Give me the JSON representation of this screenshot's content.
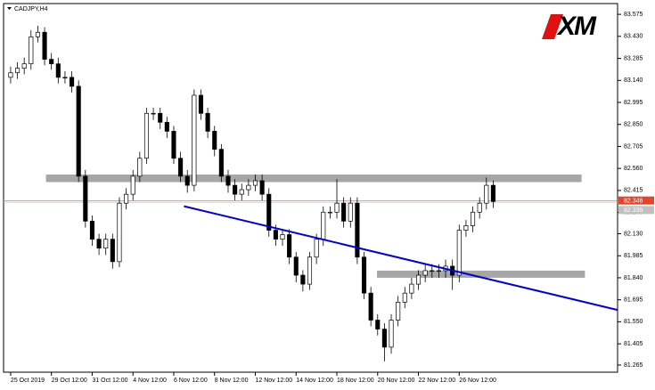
{
  "chart_data": {
    "type": "candlestick",
    "title": "CADJPY,H4",
    "logo": "XM",
    "open": [
      83.16,
      83.19,
      83.22,
      83.249,
      83.427,
      83.457,
      83.279,
      83.249,
      83.16,
      83.16,
      83.101,
      82.509,
      82.213,
      82.094,
      82.035,
      82.094,
      81.946,
      82.331,
      82.39,
      82.509,
      82.627,
      82.923,
      82.923,
      82.864,
      82.805,
      82.627,
      82.509,
      82.449,
      83.042,
      82.923,
      82.805,
      82.686,
      82.509,
      82.449,
      82.39,
      82.42,
      82.449,
      82.479,
      82.39,
      82.153,
      82.094,
      82.124,
      81.976,
      81.857,
      81.798,
      81.976,
      82.094,
      82.272,
      82.272,
      82.331,
      82.213,
      82.331,
      81.976,
      81.739,
      81.561,
      81.502,
      81.383,
      81.561,
      81.679,
      81.739,
      81.798,
      81.857,
      81.887,
      81.887,
      81.887,
      81.916,
      81.857,
      82.153,
      82.183,
      82.272,
      82.331,
      82.449
    ],
    "high": [
      83.23,
      83.26,
      83.29,
      83.47,
      83.5,
      83.49,
      83.32,
      83.29,
      83.2,
      83.2,
      83.14,
      82.55,
      82.25,
      82.13,
      82.13,
      82.13,
      82.37,
      82.43,
      82.55,
      82.67,
      82.96,
      82.96,
      82.96,
      82.9,
      82.84,
      82.67,
      82.55,
      83.08,
      83.08,
      82.96,
      82.84,
      82.72,
      82.55,
      82.49,
      82.46,
      82.49,
      82.52,
      82.52,
      82.43,
      82.19,
      82.16,
      82.16,
      82.01,
      81.89,
      82.01,
      82.13,
      82.31,
      82.31,
      82.49,
      82.37,
      82.37,
      82.37,
      82.01,
      81.78,
      81.6,
      81.54,
      81.6,
      81.72,
      81.78,
      81.84,
      81.89,
      81.93,
      81.93,
      81.93,
      81.96,
      81.96,
      82.19,
      82.22,
      82.31,
      82.37,
      82.5,
      82.48
    ],
    "low": [
      83.12,
      83.15,
      83.18,
      83.21,
      83.39,
      83.24,
      83.21,
      83.12,
      83.12,
      83.06,
      82.47,
      82.17,
      82.05,
      81.99,
      81.99,
      81.9,
      81.91,
      82.29,
      82.35,
      82.47,
      82.59,
      82.88,
      82.82,
      82.76,
      82.59,
      82.47,
      82.4,
      82.41,
      82.88,
      82.76,
      82.64,
      82.47,
      82.4,
      82.35,
      82.35,
      82.38,
      82.41,
      82.35,
      82.11,
      82.05,
      82.05,
      81.93,
      81.81,
      81.75,
      81.76,
      81.93,
      82.05,
      82.23,
      82.23,
      82.17,
      82.17,
      81.93,
      81.7,
      81.52,
      81.46,
      81.29,
      81.34,
      81.52,
      81.64,
      81.7,
      81.76,
      81.81,
      81.84,
      81.84,
      81.84,
      81.76,
      81.81,
      82.11,
      82.14,
      82.23,
      82.29,
      82.3
    ],
    "close": [
      83.19,
      83.22,
      83.249,
      83.427,
      83.457,
      83.279,
      83.249,
      83.16,
      83.16,
      83.101,
      82.509,
      82.213,
      82.094,
      82.035,
      82.094,
      81.946,
      82.331,
      82.39,
      82.509,
      82.627,
      82.923,
      82.923,
      82.864,
      82.805,
      82.627,
      82.509,
      82.449,
      83.042,
      82.923,
      82.805,
      82.686,
      82.509,
      82.449,
      82.39,
      82.42,
      82.449,
      82.479,
      82.39,
      82.153,
      82.094,
      82.124,
      81.976,
      81.857,
      81.798,
      81.976,
      82.094,
      82.272,
      82.272,
      82.331,
      82.213,
      82.331,
      81.976,
      81.739,
      81.561,
      81.502,
      81.383,
      81.561,
      81.679,
      81.739,
      81.798,
      81.857,
      81.887,
      81.887,
      81.887,
      81.916,
      81.857,
      82.153,
      82.183,
      82.272,
      82.331,
      82.449,
      82.342
    ],
    "xlim": [
      -1.04,
      89.3
    ],
    "xticks": [
      {
        "value": 0,
        "label": "25 Oct 2019"
      },
      {
        "value": 6,
        "label": "29 Oct 12:00"
      },
      {
        "value": 12,
        "label": "31 Oct 12:00"
      },
      {
        "value": 18,
        "label": "4 Nov 12:00"
      },
      {
        "value": 24,
        "label": "6 Nov 12:00"
      },
      {
        "value": 30,
        "label": "8 Nov 12:00"
      },
      {
        "value": 36,
        "label": "12 Nov 12:00"
      },
      {
        "value": 42,
        "label": "14 Nov 12:00"
      },
      {
        "value": 48,
        "label": "18 Nov 12:00"
      },
      {
        "value": 54,
        "label": "20 Nov 12:00"
      },
      {
        "value": 60,
        "label": "22 Nov 12:00"
      },
      {
        "value": 66,
        "label": "26 Nov 12:00"
      }
    ],
    "ylim": [
      81.218,
      83.646
    ],
    "yticks": [
      83.575,
      {
        "value": 83.43,
        "label": "83.430"
      },
      83.285,
      {
        "value": 83.14,
        "label": "83.140"
      },
      82.995,
      {
        "value": 82.85,
        "label": "82.850"
      },
      82.705,
      {
        "value": 82.56,
        "label": "82.560"
      },
      82.415,
      {
        "value": 82.27,
        "label": "82.270"
      },
      {
        "value": 82.13,
        "label": "82.130"
      },
      81.985,
      {
        "value": 81.84,
        "label": "81.840"
      },
      81.695,
      {
        "value": 81.55,
        "label": "81.550"
      },
      81.405,
      81.265
    ],
    "zones": [
      {
        "x": [
          5.2,
          84.0
        ],
        "y": [
          82.47,
          82.52
        ]
      },
      {
        "x": [
          53.9,
          84.5
        ],
        "y": [
          81.84,
          81.887
        ]
      }
    ],
    "trendline": {
      "x": [
        25.5,
        89.3
      ],
      "y": [
        82.311,
        81.628
      ],
      "color": "#0000dd"
    },
    "bid": 82.346,
    "ask": 82.336,
    "up_color": "#ffffff",
    "down_color": "#000000"
  }
}
